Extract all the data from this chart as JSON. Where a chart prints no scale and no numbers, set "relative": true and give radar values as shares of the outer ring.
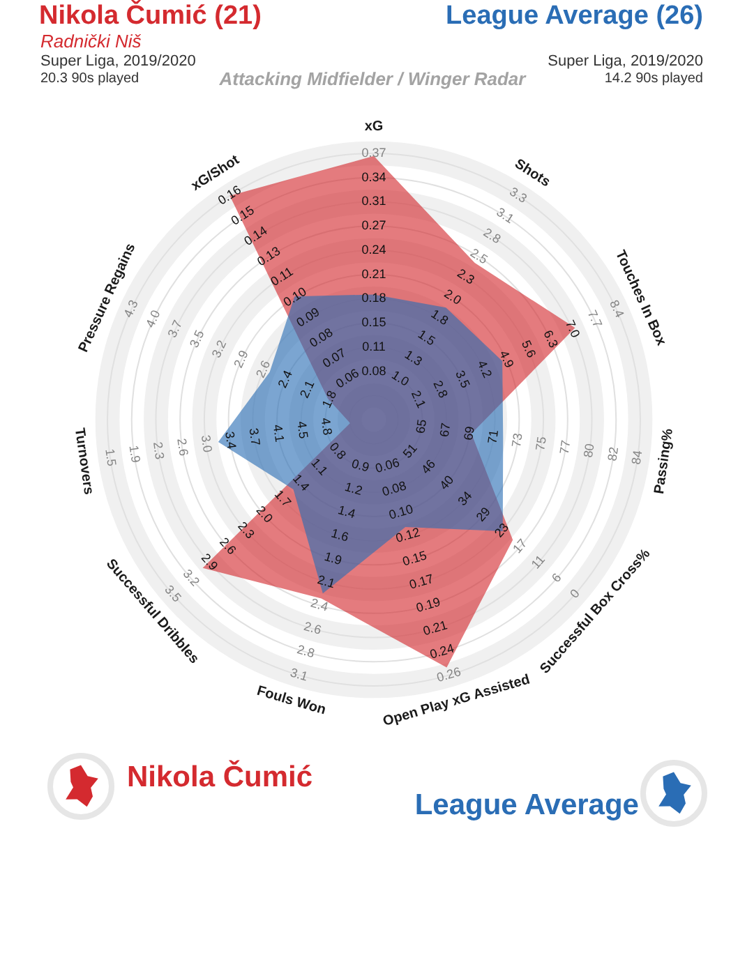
{
  "chart_data": {
    "type": "radar",
    "title": "Attacking Midfielder / Winger Radar",
    "categories": [
      "xG",
      "Shots",
      "Touches In Box",
      "Passing%",
      "Successful Box Cross%",
      "Open Play xG Assisted",
      "Fouls Won",
      "Successful Dribbles",
      "Turnovers",
      "Pressure Regains",
      "xG/Shot"
    ],
    "relative": true,
    "series": [
      {
        "name": "Nikola Čumić",
        "color": "#d42a2f",
        "values": [
          0.99,
          0.7,
          0.83,
          0.37,
          0.69,
          0.97,
          0.7,
          0.85,
          0.09,
          0.19,
          1.0
        ]
      },
      {
        "name": "League Average",
        "color": "#2a6db5",
        "values": [
          0.47,
          0.5,
          0.53,
          0.49,
          0.64,
          0.42,
          0.68,
          0.4,
          0.59,
          0.43,
          0.55
        ]
      }
    ],
    "grid": true,
    "legend": "bottom",
    "annotations": [
      "Nikola Čumić (21)",
      "Radnički Niš",
      "Super Liga, 2019/2020",
      "20.3 90s played",
      "League Average (26)",
      "Super Liga, 2019/2020",
      "14.2 90s played",
      {
        "text": "0.08",
        "x": "xG"
      },
      {
        "text": "0.11",
        "x": "xG"
      },
      {
        "text": "0.15",
        "x": "xG"
      },
      {
        "text": "0.18",
        "x": "xG"
      },
      {
        "text": "0.21",
        "x": "xG"
      },
      {
        "text": "0.24",
        "x": "xG"
      },
      {
        "text": "0.27",
        "x": "xG"
      },
      {
        "text": "0.31",
        "x": "xG"
      },
      {
        "text": "0.34",
        "x": "xG"
      },
      {
        "text": "0.37",
        "x": "xG"
      },
      {
        "text": "1.0",
        "x": "Shots"
      },
      {
        "text": "1.3",
        "x": "Shots"
      },
      {
        "text": "1.5",
        "x": "Shots"
      },
      {
        "text": "1.8",
        "x": "Shots"
      },
      {
        "text": "2.0",
        "x": "Shots"
      },
      {
        "text": "2.3",
        "x": "Shots"
      },
      {
        "text": "2.5",
        "x": "Shots"
      },
      {
        "text": "2.8",
        "x": "Shots"
      },
      {
        "text": "3.1",
        "x": "Shots"
      },
      {
        "text": "3.3",
        "x": "Shots"
      },
      {
        "text": "2.1",
        "x": "Touches In Box"
      },
      {
        "text": "2.8",
        "x": "Touches In Box"
      },
      {
        "text": "3.5",
        "x": "Touches In Box"
      },
      {
        "text": "4.2",
        "x": "Touches In Box"
      },
      {
        "text": "4.9",
        "x": "Touches In Box"
      },
      {
        "text": "5.6",
        "x": "Touches In Box"
      },
      {
        "text": "6.3",
        "x": "Touches In Box"
      },
      {
        "text": "7.0",
        "x": "Touches In Box"
      },
      {
        "text": "7.7",
        "x": "Touches In Box"
      },
      {
        "text": "8.4",
        "x": "Touches In Box"
      },
      {
        "text": "65",
        "x": "Passing%"
      },
      {
        "text": "67",
        "x": "Passing%"
      },
      {
        "text": "69",
        "x": "Passing%"
      },
      {
        "text": "71",
        "x": "Passing%"
      },
      {
        "text": "73",
        "x": "Passing%"
      },
      {
        "text": "75",
        "x": "Passing%"
      },
      {
        "text": "77",
        "x": "Passing%"
      },
      {
        "text": "80",
        "x": "Passing%"
      },
      {
        "text": "82",
        "x": "Passing%"
      },
      {
        "text": "84",
        "x": "Passing%"
      },
      {
        "text": "51",
        "x": "Successful Box Cross%"
      },
      {
        "text": "46",
        "x": "Successful Box Cross%"
      },
      {
        "text": "40",
        "x": "Successful Box Cross%"
      },
      {
        "text": "34",
        "x": "Successful Box Cross%"
      },
      {
        "text": "29",
        "x": "Successful Box Cross%"
      },
      {
        "text": "23",
        "x": "Successful Box Cross%"
      },
      {
        "text": "17",
        "x": "Successful Box Cross%"
      },
      {
        "text": "11",
        "x": "Successful Box Cross%"
      },
      {
        "text": "6",
        "x": "Successful Box Cross%"
      },
      {
        "text": "0",
        "x": "Successful Box Cross%"
      },
      {
        "text": "0.06",
        "x": "Open Play xG Assisted"
      },
      {
        "text": "0.08",
        "x": "Open Play xG Assisted"
      },
      {
        "text": "0.10",
        "x": "Open Play xG Assisted"
      },
      {
        "text": "0.12",
        "x": "Open Play xG Assisted"
      },
      {
        "text": "0.15",
        "x": "Open Play xG Assisted"
      },
      {
        "text": "0.17",
        "x": "Open Play xG Assisted"
      },
      {
        "text": "0.19",
        "x": "Open Play xG Assisted"
      },
      {
        "text": "0.21",
        "x": "Open Play xG Assisted"
      },
      {
        "text": "0.24",
        "x": "Open Play xG Assisted"
      },
      {
        "text": "0.26",
        "x": "Open Play xG Assisted"
      },
      {
        "text": "0.9",
        "x": "Fouls Won"
      },
      {
        "text": "1.2",
        "x": "Fouls Won"
      },
      {
        "text": "1.4",
        "x": "Fouls Won"
      },
      {
        "text": "1.6",
        "x": "Fouls Won"
      },
      {
        "text": "1.9",
        "x": "Fouls Won"
      },
      {
        "text": "2.1",
        "x": "Fouls Won"
      },
      {
        "text": "2.4",
        "x": "Fouls Won"
      },
      {
        "text": "2.6",
        "x": "Fouls Won"
      },
      {
        "text": "2.8",
        "x": "Fouls Won"
      },
      {
        "text": "3.1",
        "x": "Fouls Won"
      },
      {
        "text": "0.8",
        "x": "Successful Dribbles"
      },
      {
        "text": "1.1",
        "x": "Successful Dribbles"
      },
      {
        "text": "1.4",
        "x": "Successful Dribbles"
      },
      {
        "text": "1.7",
        "x": "Successful Dribbles"
      },
      {
        "text": "2.0",
        "x": "Successful Dribbles"
      },
      {
        "text": "2.3",
        "x": "Successful Dribbles"
      },
      {
        "text": "2.6",
        "x": "Successful Dribbles"
      },
      {
        "text": "2.9",
        "x": "Successful Dribbles"
      },
      {
        "text": "3.2",
        "x": "Successful Dribbles"
      },
      {
        "text": "3.5",
        "x": "Successful Dribbles"
      },
      {
        "text": "4.8",
        "x": "Turnovers"
      },
      {
        "text": "4.5",
        "x": "Turnovers"
      },
      {
        "text": "4.1",
        "x": "Turnovers"
      },
      {
        "text": "3.7",
        "x": "Turnovers"
      },
      {
        "text": "3.4",
        "x": "Turnovers"
      },
      {
        "text": "3.0",
        "x": "Turnovers"
      },
      {
        "text": "2.6",
        "x": "Turnovers"
      },
      {
        "text": "2.3",
        "x": "Turnovers"
      },
      {
        "text": "1.9",
        "x": "Turnovers"
      },
      {
        "text": "1.5",
        "x": "Turnovers"
      },
      {
        "text": "1.8",
        "x": "Pressure Regains"
      },
      {
        "text": "2.1",
        "x": "Pressure Regains"
      },
      {
        "text": "2.4",
        "x": "Pressure Regains"
      },
      {
        "text": "2.6",
        "x": "Pressure Regains"
      },
      {
        "text": "2.9",
        "x": "Pressure Regains"
      },
      {
        "text": "3.2",
        "x": "Pressure Regains"
      },
      {
        "text": "3.5",
        "x": "Pressure Regains"
      },
      {
        "text": "3.7",
        "x": "Pressure Regains"
      },
      {
        "text": "4.0",
        "x": "Pressure Regains"
      },
      {
        "text": "4.3",
        "x": "Pressure Regains"
      },
      {
        "text": "0.06",
        "x": "xG/Shot"
      },
      {
        "text": "0.07",
        "x": "xG/Shot"
      },
      {
        "text": "0.08",
        "x": "xG/Shot"
      },
      {
        "text": "0.09",
        "x": "xG/Shot"
      },
      {
        "text": "0.10",
        "x": "xG/Shot"
      },
      {
        "text": "0.11",
        "x": "xG/Shot"
      },
      {
        "text": "0.13",
        "x": "xG/Shot"
      },
      {
        "text": "0.14",
        "x": "xG/Shot"
      },
      {
        "text": "0.15",
        "x": "xG/Shot"
      },
      {
        "text": "0.16",
        "x": "xG/Shot"
      }
    ]
  }
}
